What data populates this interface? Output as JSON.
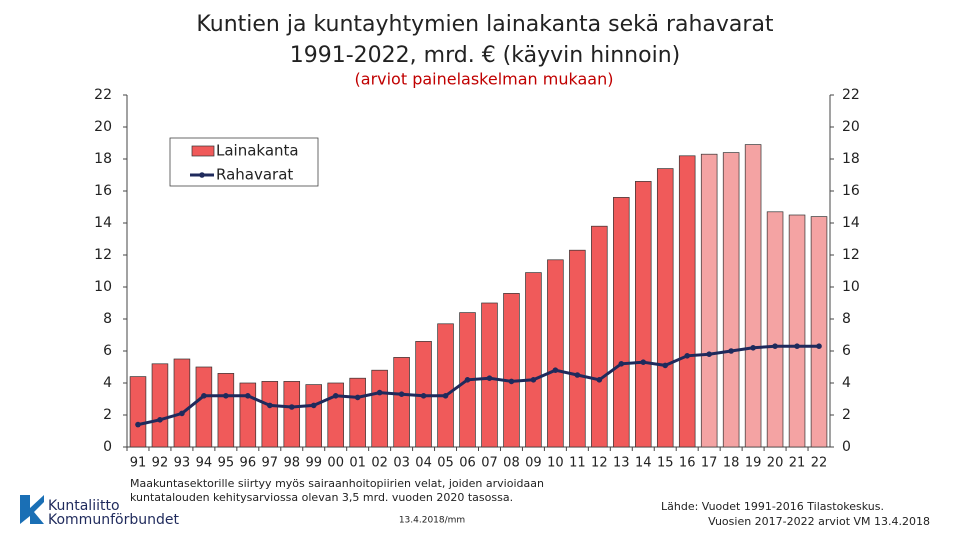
{
  "chart_data": {
    "type": "bar-line",
    "title": [
      "Kuntien ja kuntayhtymien lainakanta sekä rahavarat",
      "1991-2022, mrd. € (käyvin hinnoin)"
    ],
    "subtitle": "(arviot painelaskelman mukaan)",
    "categories": [
      "91",
      "92",
      "93",
      "94",
      "95",
      "96",
      "97",
      "98",
      "99",
      "00",
      "01",
      "02",
      "03",
      "04",
      "05",
      "06",
      "07",
      "08",
      "09",
      "10",
      "11",
      "12",
      "13",
      "14",
      "15",
      "16",
      "17",
      "18",
      "19",
      "20",
      "21",
      "22"
    ],
    "series": [
      {
        "name": "Lainakanta",
        "type": "bar",
        "color": "#f05a5a",
        "colors": [
          "#f05a5a",
          "#f05a5a",
          "#f05a5a",
          "#f05a5a",
          "#f05a5a",
          "#f05a5a",
          "#f05a5a",
          "#f05a5a",
          "#f05a5a",
          "#f05a5a",
          "#f05a5a",
          "#f05a5a",
          "#f05a5a",
          "#f05a5a",
          "#f05a5a",
          "#f05a5a",
          "#f05a5a",
          "#f05a5a",
          "#f05a5a",
          "#f05a5a",
          "#f05a5a",
          "#f05a5a",
          "#f05a5a",
          "#f05a5a",
          "#f05a5a",
          "#f05a5a",
          "#f4a3a3",
          "#f4a3a3",
          "#f4a3a3",
          "#f4a3a3",
          "#f4a3a3",
          "#f4a3a3"
        ],
        "values": [
          4.4,
          5.2,
          5.5,
          5.0,
          4.6,
          4.0,
          4.1,
          4.1,
          3.9,
          4.0,
          4.3,
          4.8,
          5.6,
          6.6,
          7.7,
          8.4,
          9.0,
          9.6,
          10.9,
          11.7,
          12.3,
          13.8,
          15.6,
          16.6,
          17.4,
          18.2,
          18.3,
          18.4,
          18.9,
          14.7,
          14.5,
          14.4
        ]
      },
      {
        "name": "Rahavarat",
        "type": "line",
        "color": "#1f2a5c",
        "values": [
          1.4,
          1.7,
          2.1,
          3.2,
          3.2,
          3.2,
          2.6,
          2.5,
          2.6,
          3.2,
          3.1,
          3.4,
          3.3,
          3.2,
          3.2,
          4.2,
          4.3,
          4.1,
          4.2,
          4.8,
          4.5,
          4.2,
          5.2,
          5.3,
          5.1,
          5.7,
          5.8,
          6.0,
          6.2,
          6.3,
          6.3,
          6.3
        ]
      }
    ],
    "ylim": [
      0,
      22
    ],
    "yticks": [
      0,
      2,
      4,
      6,
      8,
      10,
      12,
      14,
      16,
      18,
      20,
      22
    ],
    "grid": false
  },
  "footnote": [
    "Maakuntasektorille siirtyy myös sairaanhoitopiirien velat, joiden arvioidaan",
    "kuntatalouden kehitysarviossa olevan 3,5 mrd. vuoden 2020 tasossa."
  ],
  "date": "13.4.2018/mm",
  "source": [
    "Lähde: Vuodet 1991-2016 Tilastokeskus.",
    "Vuosien 2017-2022 arviot VM 13.4.2018"
  ],
  "logo": [
    "Kuntaliitto",
    "Kommunförbundet"
  ]
}
